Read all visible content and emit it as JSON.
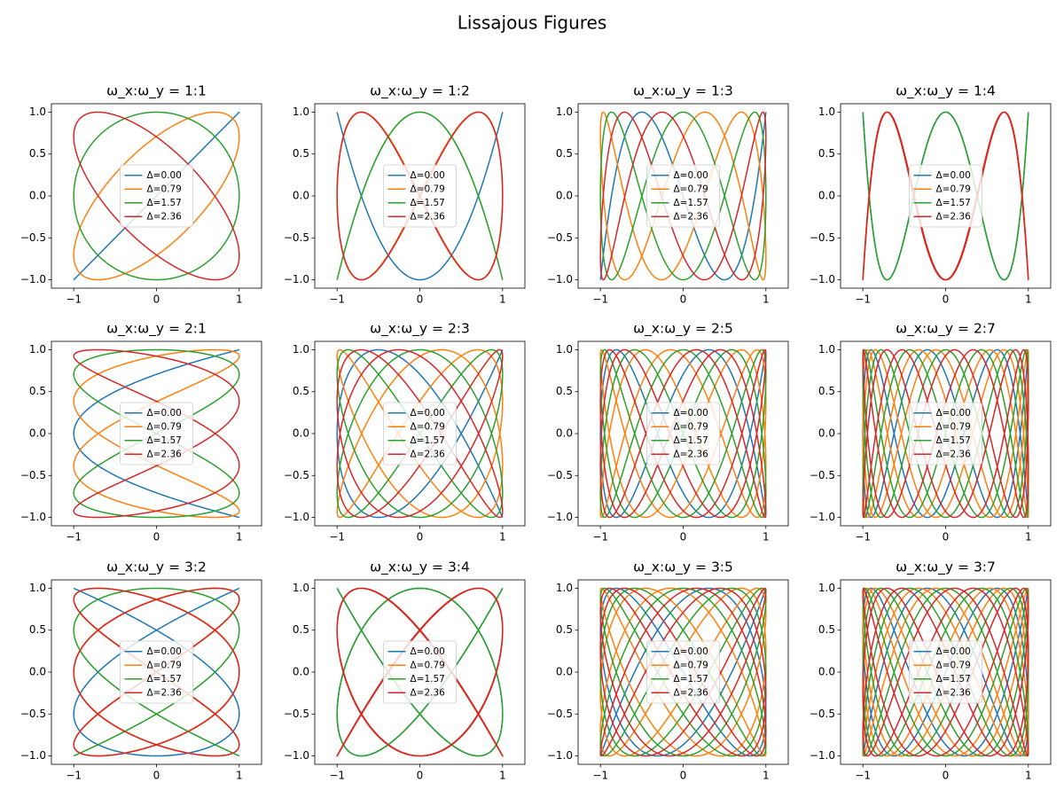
{
  "title": "Lissajous Figures",
  "chart_data": [
    {
      "type": "lissajous",
      "title": "ω_x:ω_y = 1:1",
      "omega_x": 1,
      "omega_y": 1,
      "xlim": [
        -1.27,
        1.27
      ],
      "ylim": [
        -1.1,
        1.1
      ],
      "xticks": [
        {
          "value": -1,
          "label": "−1"
        },
        0,
        1
      ],
      "yticks": [
        {
          "value": -1,
          "label": "−1.0"
        },
        {
          "value": -0.5,
          "label": "−0.5"
        },
        {
          "value": 0,
          "label": "0.0"
        },
        0.5,
        {
          "value": 1,
          "label": "1.0"
        }
      ],
      "legend": "center",
      "series": [
        {
          "name": "Δ=0.00",
          "color": "#1f77b4",
          "delta": 0
        },
        {
          "name": "Δ=0.79",
          "color": "#ff7f0e",
          "delta": 0.79
        },
        {
          "name": "Δ=1.57",
          "color": "#2ca02c",
          "delta": 1.57
        },
        {
          "name": "Δ=2.36",
          "color": "#d62728",
          "delta": 2.36
        }
      ]
    },
    {
      "type": "lissajous",
      "title": "ω_x:ω_y = 1:2",
      "omega_x": 1,
      "omega_y": 2,
      "xlim": [
        -1.27,
        1.27
      ],
      "ylim": [
        -1.1,
        1.1
      ],
      "xticks": [
        {
          "value": -1,
          "label": "−1"
        },
        0,
        1
      ],
      "yticks": [
        {
          "value": -1,
          "label": "−1.0"
        },
        {
          "value": -0.5,
          "label": "−0.5"
        },
        {
          "value": 0,
          "label": "0.0"
        },
        0.5,
        {
          "value": 1,
          "label": "1.0"
        }
      ],
      "legend": "center",
      "series": [
        {
          "name": "Δ=0.00",
          "color": "#1f77b4",
          "delta": 0
        },
        {
          "name": "Δ=0.79",
          "color": "#ff7f0e",
          "delta": 0.79
        },
        {
          "name": "Δ=1.57",
          "color": "#2ca02c",
          "delta": 1.57
        },
        {
          "name": "Δ=2.36",
          "color": "#d62728",
          "delta": 2.36
        }
      ]
    },
    {
      "type": "lissajous",
      "title": "ω_x:ω_y = 1:3",
      "omega_x": 1,
      "omega_y": 3,
      "xlim": [
        -1.27,
        1.27
      ],
      "ylim": [
        -1.1,
        1.1
      ],
      "xticks": [
        {
          "value": -1,
          "label": "−1"
        },
        0,
        1
      ],
      "yticks": [
        {
          "value": -1,
          "label": "−1.0"
        },
        {
          "value": -0.5,
          "label": "−0.5"
        },
        {
          "value": 0,
          "label": "0.0"
        },
        0.5,
        {
          "value": 1,
          "label": "1.0"
        }
      ],
      "legend": "center",
      "series": [
        {
          "name": "Δ=0.00",
          "color": "#1f77b4",
          "delta": 0
        },
        {
          "name": "Δ=0.79",
          "color": "#ff7f0e",
          "delta": 0.79
        },
        {
          "name": "Δ=1.57",
          "color": "#2ca02c",
          "delta": 1.57
        },
        {
          "name": "Δ=2.36",
          "color": "#d62728",
          "delta": 2.36
        }
      ]
    },
    {
      "type": "lissajous",
      "title": "ω_x:ω_y = 1:4",
      "omega_x": 1,
      "omega_y": 4,
      "xlim": [
        -1.27,
        1.27
      ],
      "ylim": [
        -1.1,
        1.1
      ],
      "xticks": [
        {
          "value": -1,
          "label": "−1"
        },
        0,
        1
      ],
      "yticks": [
        {
          "value": -1,
          "label": "−1.0"
        },
        {
          "value": -0.5,
          "label": "−0.5"
        },
        {
          "value": 0,
          "label": "0.0"
        },
        0.5,
        {
          "value": 1,
          "label": "1.0"
        }
      ],
      "legend": "center",
      "series": [
        {
          "name": "Δ=0.00",
          "color": "#1f77b4",
          "delta": 0
        },
        {
          "name": "Δ=0.79",
          "color": "#ff7f0e",
          "delta": 0.79
        },
        {
          "name": "Δ=1.57",
          "color": "#2ca02c",
          "delta": 1.57
        },
        {
          "name": "Δ=2.36",
          "color": "#d62728",
          "delta": 2.36
        }
      ]
    },
    {
      "type": "lissajous",
      "title": "ω_x:ω_y = 2:1",
      "omega_x": 2,
      "omega_y": 1,
      "xlim": [
        -1.27,
        1.27
      ],
      "ylim": [
        -1.1,
        1.1
      ],
      "xticks": [
        {
          "value": -1,
          "label": "−1"
        },
        0,
        1
      ],
      "yticks": [
        {
          "value": -1,
          "label": "−1.0"
        },
        {
          "value": -0.5,
          "label": "−0.5"
        },
        {
          "value": 0,
          "label": "0.0"
        },
        0.5,
        {
          "value": 1,
          "label": "1.0"
        }
      ],
      "legend": "center",
      "series": [
        {
          "name": "Δ=0.00",
          "color": "#1f77b4",
          "delta": 0
        },
        {
          "name": "Δ=0.79",
          "color": "#ff7f0e",
          "delta": 0.79
        },
        {
          "name": "Δ=1.57",
          "color": "#2ca02c",
          "delta": 1.57
        },
        {
          "name": "Δ=2.36",
          "color": "#d62728",
          "delta": 2.36
        }
      ]
    },
    {
      "type": "lissajous",
      "title": "ω_x:ω_y = 2:3",
      "omega_x": 2,
      "omega_y": 3,
      "xlim": [
        -1.27,
        1.27
      ],
      "ylim": [
        -1.1,
        1.1
      ],
      "xticks": [
        {
          "value": -1,
          "label": "−1"
        },
        0,
        1
      ],
      "yticks": [
        {
          "value": -1,
          "label": "−1.0"
        },
        {
          "value": -0.5,
          "label": "−0.5"
        },
        {
          "value": 0,
          "label": "0.0"
        },
        0.5,
        {
          "value": 1,
          "label": "1.0"
        }
      ],
      "legend": "center",
      "series": [
        {
          "name": "Δ=0.00",
          "color": "#1f77b4",
          "delta": 0
        },
        {
          "name": "Δ=0.79",
          "color": "#ff7f0e",
          "delta": 0.79
        },
        {
          "name": "Δ=1.57",
          "color": "#2ca02c",
          "delta": 1.57
        },
        {
          "name": "Δ=2.36",
          "color": "#d62728",
          "delta": 2.36
        }
      ]
    },
    {
      "type": "lissajous",
      "title": "ω_x:ω_y = 2:5",
      "omega_x": 2,
      "omega_y": 5,
      "xlim": [
        -1.27,
        1.27
      ],
      "ylim": [
        -1.1,
        1.1
      ],
      "xticks": [
        {
          "value": -1,
          "label": "−1"
        },
        0,
        1
      ],
      "yticks": [
        {
          "value": -1,
          "label": "−1.0"
        },
        {
          "value": -0.5,
          "label": "−0.5"
        },
        {
          "value": 0,
          "label": "0.0"
        },
        0.5,
        {
          "value": 1,
          "label": "1.0"
        }
      ],
      "legend": "center",
      "series": [
        {
          "name": "Δ=0.00",
          "color": "#1f77b4",
          "delta": 0
        },
        {
          "name": "Δ=0.79",
          "color": "#ff7f0e",
          "delta": 0.79
        },
        {
          "name": "Δ=1.57",
          "color": "#2ca02c",
          "delta": 1.57
        },
        {
          "name": "Δ=2.36",
          "color": "#d62728",
          "delta": 2.36
        }
      ]
    },
    {
      "type": "lissajous",
      "title": "ω_x:ω_y = 2:7",
      "omega_x": 2,
      "omega_y": 7,
      "xlim": [
        -1.27,
        1.27
      ],
      "ylim": [
        -1.1,
        1.1
      ],
      "xticks": [
        {
          "value": -1,
          "label": "−1"
        },
        0,
        1
      ],
      "yticks": [
        {
          "value": -1,
          "label": "−1.0"
        },
        {
          "value": -0.5,
          "label": "−0.5"
        },
        {
          "value": 0,
          "label": "0.0"
        },
        0.5,
        {
          "value": 1,
          "label": "1.0"
        }
      ],
      "legend": "center",
      "series": [
        {
          "name": "Δ=0.00",
          "color": "#1f77b4",
          "delta": 0
        },
        {
          "name": "Δ=0.79",
          "color": "#ff7f0e",
          "delta": 0.79
        },
        {
          "name": "Δ=1.57",
          "color": "#2ca02c",
          "delta": 1.57
        },
        {
          "name": "Δ=2.36",
          "color": "#d62728",
          "delta": 2.36
        }
      ]
    },
    {
      "type": "lissajous",
      "title": "ω_x:ω_y = 3:2",
      "omega_x": 3,
      "omega_y": 2,
      "xlim": [
        -1.27,
        1.27
      ],
      "ylim": [
        -1.1,
        1.1
      ],
      "xticks": [
        {
          "value": -1,
          "label": "−1"
        },
        0,
        1
      ],
      "yticks": [
        {
          "value": -1,
          "label": "−1.0"
        },
        {
          "value": -0.5,
          "label": "−0.5"
        },
        {
          "value": 0,
          "label": "0.0"
        },
        0.5,
        {
          "value": 1,
          "label": "1.0"
        }
      ],
      "legend": "center",
      "series": [
        {
          "name": "Δ=0.00",
          "color": "#1f77b4",
          "delta": 0
        },
        {
          "name": "Δ=0.79",
          "color": "#ff7f0e",
          "delta": 0.79
        },
        {
          "name": "Δ=1.57",
          "color": "#2ca02c",
          "delta": 1.57
        },
        {
          "name": "Δ=2.36",
          "color": "#d62728",
          "delta": 2.36
        }
      ]
    },
    {
      "type": "lissajous",
      "title": "ω_x:ω_y = 3:4",
      "omega_x": 3,
      "omega_y": 4,
      "xlim": [
        -1.27,
        1.27
      ],
      "ylim": [
        -1.1,
        1.1
      ],
      "xticks": [
        {
          "value": -1,
          "label": "−1"
        },
        0,
        1
      ],
      "yticks": [
        {
          "value": -1,
          "label": "−1.0"
        },
        {
          "value": -0.5,
          "label": "−0.5"
        },
        {
          "value": 0,
          "label": "0.0"
        },
        0.5,
        {
          "value": 1,
          "label": "1.0"
        }
      ],
      "legend": "center",
      "series": [
        {
          "name": "Δ=0.00",
          "color": "#1f77b4",
          "delta": 0
        },
        {
          "name": "Δ=0.79",
          "color": "#ff7f0e",
          "delta": 0.79
        },
        {
          "name": "Δ=1.57",
          "color": "#2ca02c",
          "delta": 1.57
        },
        {
          "name": "Δ=2.36",
          "color": "#d62728",
          "delta": 2.36
        }
      ]
    },
    {
      "type": "lissajous",
      "title": "ω_x:ω_y = 3:5",
      "omega_x": 3,
      "omega_y": 5,
      "xlim": [
        -1.27,
        1.27
      ],
      "ylim": [
        -1.1,
        1.1
      ],
      "xticks": [
        {
          "value": -1,
          "label": "−1"
        },
        0,
        1
      ],
      "yticks": [
        {
          "value": -1,
          "label": "−1.0"
        },
        {
          "value": -0.5,
          "label": "−0.5"
        },
        {
          "value": 0,
          "label": "0.0"
        },
        0.5,
        {
          "value": 1,
          "label": "1.0"
        }
      ],
      "legend": "center",
      "series": [
        {
          "name": "Δ=0.00",
          "color": "#1f77b4",
          "delta": 0
        },
        {
          "name": "Δ=0.79",
          "color": "#ff7f0e",
          "delta": 0.79
        },
        {
          "name": "Δ=1.57",
          "color": "#2ca02c",
          "delta": 1.57
        },
        {
          "name": "Δ=2.36",
          "color": "#d62728",
          "delta": 2.36
        }
      ]
    },
    {
      "type": "lissajous",
      "title": "ω_x:ω_y = 3:7",
      "omega_x": 3,
      "omega_y": 7,
      "xlim": [
        -1.27,
        1.27
      ],
      "ylim": [
        -1.1,
        1.1
      ],
      "xticks": [
        {
          "value": -1,
          "label": "−1"
        },
        0,
        1
      ],
      "yticks": [
        {
          "value": -1,
          "label": "−1.0"
        },
        {
          "value": -0.5,
          "label": "−0.5"
        },
        {
          "value": 0,
          "label": "0.0"
        },
        0.5,
        {
          "value": 1,
          "label": "1.0"
        }
      ],
      "legend": "center",
      "series": [
        {
          "name": "Δ=0.00",
          "color": "#1f77b4",
          "delta": 0
        },
        {
          "name": "Δ=0.79",
          "color": "#ff7f0e",
          "delta": 0.79
        },
        {
          "name": "Δ=1.57",
          "color": "#2ca02c",
          "delta": 1.57
        },
        {
          "name": "Δ=2.36",
          "color": "#d62728",
          "delta": 2.36
        }
      ]
    }
  ]
}
